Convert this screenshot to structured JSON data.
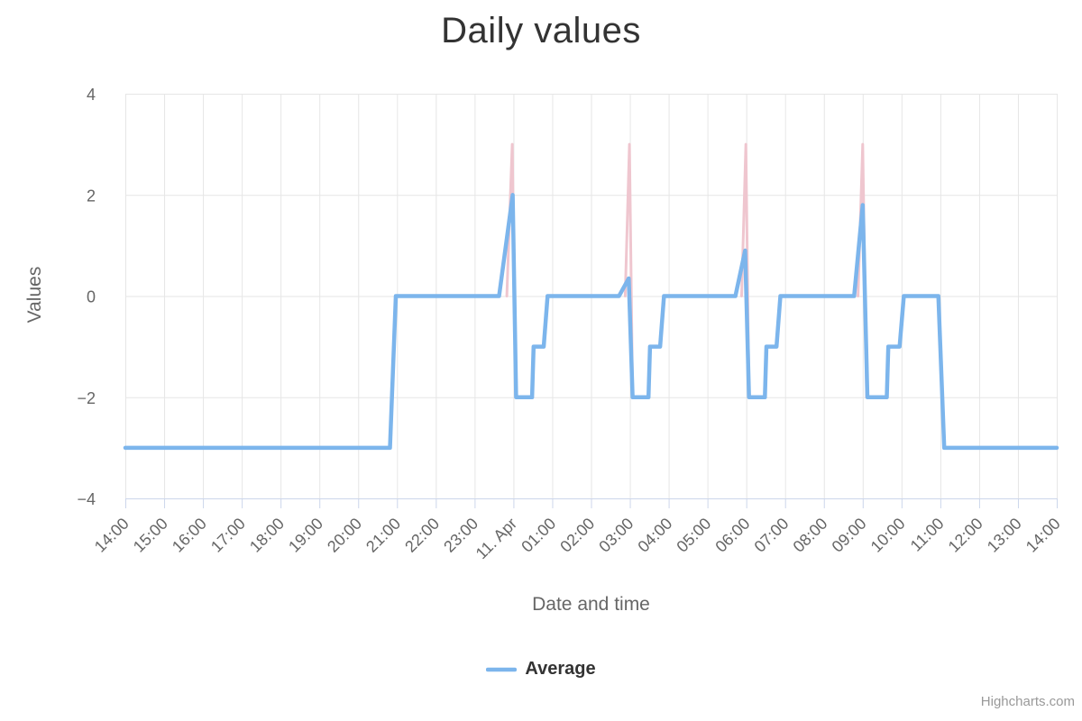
{
  "credits": "Highcharts.com",
  "chart_data": {
    "type": "line",
    "title": "Daily values",
    "xlabel": "Date and time",
    "ylabel": "Values",
    "grid": true,
    "x_axis": {
      "unit": "one tick per hour, from 14:00 to 14:00 next day (11. Apr = midnight)",
      "labels": [
        "14:00",
        "15:00",
        "16:00",
        "17:00",
        "18:00",
        "19:00",
        "20:00",
        "21:00",
        "22:00",
        "23:00",
        "11. Apr",
        "01:00",
        "02:00",
        "03:00",
        "04:00",
        "05:00",
        "06:00",
        "07:00",
        "08:00",
        "09:00",
        "10:00",
        "11:00",
        "12:00",
        "13:00",
        "14:00"
      ]
    },
    "y_axis": {
      "range": [
        -4,
        4
      ],
      "ticks": [
        {
          "value": 4,
          "label": "4"
        },
        {
          "value": 2,
          "label": "2"
        },
        {
          "value": 0,
          "label": "0"
        },
        {
          "value": -2,
          "label": "−2"
        },
        {
          "value": -4,
          "label": "−4"
        }
      ]
    },
    "legend": {
      "position": "bottom-center",
      "items": [
        {
          "label": "Average",
          "color": "#7cb5ec"
        }
      ]
    },
    "colors": {
      "grid": "#e6e6e6",
      "axis_line": "#ccd6eb",
      "tick_text": "#666666",
      "title_text": "#333333",
      "credits_text": "#999999",
      "average_line": "#7cb5ec",
      "spike_line": "#efc6cf"
    },
    "series": [
      {
        "name": "Average",
        "color": "#7cb5ec",
        "stroke_width": 4.5,
        "points": [
          [
            0,
            -3
          ],
          [
            6.82,
            -3
          ],
          [
            6.97,
            0
          ],
          [
            9.63,
            0
          ],
          [
            9.98,
            2
          ],
          [
            10.07,
            -2
          ],
          [
            10.48,
            -2
          ],
          [
            10.52,
            -1
          ],
          [
            10.78,
            -1
          ],
          [
            10.88,
            0
          ],
          [
            12.72,
            0
          ],
          [
            12.97,
            0.35
          ],
          [
            13.07,
            -2
          ],
          [
            13.48,
            -2
          ],
          [
            13.52,
            -1
          ],
          [
            13.78,
            -1
          ],
          [
            13.88,
            0
          ],
          [
            15.72,
            0
          ],
          [
            15.97,
            0.9
          ],
          [
            16.07,
            -2
          ],
          [
            16.48,
            -2
          ],
          [
            16.52,
            -1
          ],
          [
            16.78,
            -1
          ],
          [
            16.88,
            0
          ],
          [
            18.78,
            0
          ],
          [
            19.0,
            1.8
          ],
          [
            19.12,
            -2
          ],
          [
            19.62,
            -2
          ],
          [
            19.66,
            -1
          ],
          [
            19.95,
            -1
          ],
          [
            20.06,
            0
          ],
          [
            20.95,
            0
          ],
          [
            21.1,
            -3
          ],
          [
            24,
            -3
          ]
        ]
      },
      {
        "name": "unlabeled-pink-spikes",
        "color": "#efc6cf",
        "stroke_width": 3,
        "spike_groups": [
          [
            [
              9.83,
              0
            ],
            [
              9.97,
              3
            ],
            [
              10.06,
              -2
            ]
          ],
          [
            [
              12.88,
              0
            ],
            [
              12.99,
              3
            ],
            [
              13.07,
              -2
            ]
          ],
          [
            [
              15.88,
              0
            ],
            [
              15.99,
              3
            ],
            [
              16.07,
              -2
            ]
          ],
          [
            [
              18.88,
              0
            ],
            [
              19.0,
              3
            ],
            [
              19.1,
              -2
            ]
          ]
        ]
      }
    ]
  }
}
